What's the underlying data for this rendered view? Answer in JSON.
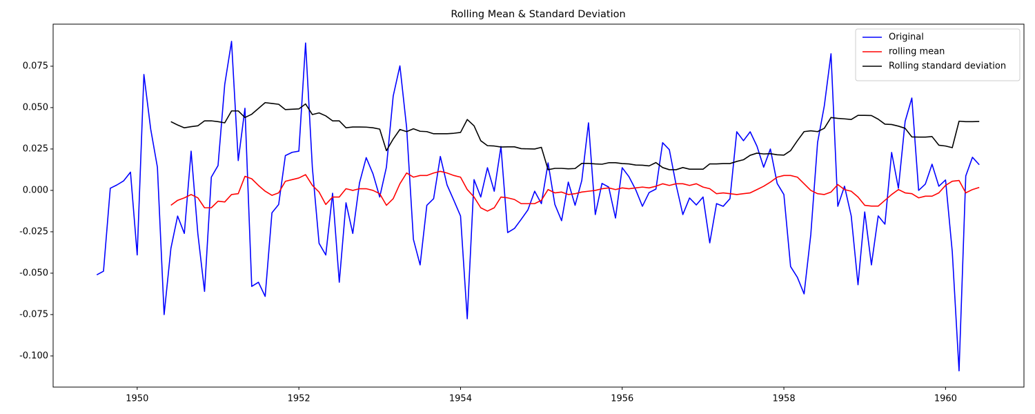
{
  "chart_data": {
    "type": "line",
    "title": "Rolling Mean & Standard Deviation",
    "x": [
      1949.5,
      1949.583,
      1949.667,
      1949.75,
      1949.833,
      1949.917,
      1950,
      1950.083,
      1950.167,
      1950.25,
      1950.333,
      1950.417,
      1950.5,
      1950.583,
      1950.667,
      1950.75,
      1950.833,
      1950.917,
      1951,
      1951.083,
      1951.167,
      1951.25,
      1951.333,
      1951.417,
      1951.5,
      1951.583,
      1951.667,
      1951.75,
      1951.833,
      1951.917,
      1952,
      1952.083,
      1952.167,
      1952.25,
      1952.333,
      1952.417,
      1952.5,
      1952.583,
      1952.667,
      1952.75,
      1952.833,
      1952.917,
      1953,
      1953.083,
      1953.167,
      1953.25,
      1953.333,
      1953.417,
      1953.5,
      1953.583,
      1953.667,
      1953.75,
      1953.833,
      1953.917,
      1954,
      1954.083,
      1954.167,
      1954.25,
      1954.333,
      1954.417,
      1954.5,
      1954.583,
      1954.667,
      1954.75,
      1954.833,
      1954.917,
      1955,
      1955.083,
      1955.167,
      1955.25,
      1955.333,
      1955.417,
      1955.5,
      1955.583,
      1955.667,
      1955.75,
      1955.833,
      1955.917,
      1956,
      1956.083,
      1956.167,
      1956.25,
      1956.333,
      1956.417,
      1956.5,
      1956.583,
      1956.667,
      1956.75,
      1956.833,
      1956.917,
      1957,
      1957.083,
      1957.167,
      1957.25,
      1957.333,
      1957.417,
      1957.5,
      1957.583,
      1957.667,
      1957.75,
      1957.833,
      1957.917,
      1958,
      1958.083,
      1958.167,
      1958.25,
      1958.333,
      1958.417,
      1958.5,
      1958.583,
      1958.667,
      1958.75,
      1958.833,
      1958.917,
      1959,
      1959.083,
      1959.167,
      1959.25,
      1959.333,
      1959.417,
      1959.5,
      1959.583,
      1959.667,
      1959.75,
      1959.833,
      1959.917,
      1960,
      1960.083,
      1960.167,
      1960.25,
      1960.333,
      1960.417
    ],
    "series": [
      {
        "name": "Original",
        "color": "#0000ff",
        "values": [
          -0.051,
          -0.0488,
          0.0013,
          0.0033,
          0.0058,
          0.011,
          -0.039,
          0.07,
          0.037,
          0.014,
          -0.075,
          -0.035,
          -0.0155,
          -0.026,
          0.0237,
          -0.026,
          -0.061,
          0.008,
          0.015,
          0.064,
          0.09,
          0.018,
          0.0496,
          -0.058,
          -0.0555,
          -0.064,
          -0.0135,
          -0.0085,
          0.021,
          0.023,
          0.0237,
          0.089,
          0.0137,
          -0.032,
          -0.039,
          -0.0017,
          -0.0555,
          -0.0075,
          -0.026,
          0.0045,
          0.0198,
          0.01,
          -0.004,
          0.014,
          0.057,
          0.0752,
          0.038,
          -0.0296,
          -0.045,
          -0.009,
          -0.005,
          0.0205,
          0.0033,
          -0.006,
          -0.0155,
          -0.0775,
          0.0065,
          -0.004,
          0.0137,
          -0.0005,
          0.0265,
          -0.0255,
          -0.023,
          -0.0175,
          -0.0118,
          -0.0005,
          -0.008,
          0.0166,
          -0.0085,
          -0.0183,
          0.005,
          -0.009,
          0.006,
          0.0408,
          -0.0146,
          0.0042,
          0.002,
          -0.0167,
          0.0137,
          0.0083,
          0.0004,
          -0.0096,
          -0.0013,
          0.0008,
          0.0288,
          0.0246,
          0.0033,
          -0.0146,
          -0.0046,
          -0.0088,
          -0.004,
          -0.0317,
          -0.008,
          -0.0096,
          -0.005,
          0.0354,
          0.03,
          0.0354,
          0.0267,
          0.014,
          0.025,
          0.0042,
          -0.0025,
          -0.046,
          -0.0525,
          -0.0625,
          -0.0267,
          0.029,
          0.051,
          0.0825,
          -0.0096,
          0.0025,
          -0.0154,
          -0.057,
          -0.013,
          -0.045,
          -0.0154,
          -0.0204,
          0.0229,
          0.0013,
          0.0417,
          0.0558,
          0,
          0.0038,
          0.0158,
          0.0025,
          0.0063,
          -0.037,
          -0.109,
          0.0087,
          0.02,
          0.0155
        ]
      },
      {
        "name": "rolling mean",
        "color": "#ff0000",
        "values": [
          null,
          null,
          null,
          null,
          null,
          null,
          null,
          null,
          null,
          null,
          null,
          -0.009,
          -0.006,
          -0.0045,
          -0.0025,
          -0.0045,
          -0.0105,
          -0.0105,
          -0.0065,
          -0.007,
          -0.0025,
          -0.002,
          0.0085,
          0.007,
          0.003,
          -0.0005,
          -0.003,
          -0.0015,
          0.0055,
          0.0065,
          0.0075,
          0.0095,
          0.003,
          -0.001,
          -0.0085,
          -0.004,
          -0.004,
          0.001,
          0,
          0.001,
          0.001,
          0,
          -0.002,
          -0.009,
          -0.005,
          0.004,
          0.0105,
          0.008,
          0.009,
          0.009,
          0.0105,
          0.0115,
          0.0105,
          0.009,
          0.008,
          0.0005,
          -0.004,
          -0.0105,
          -0.0125,
          -0.0105,
          -0.004,
          -0.0045,
          -0.0055,
          -0.008,
          -0.008,
          -0.008,
          -0.006,
          0.0005,
          -0.0015,
          -0.001,
          -0.0025,
          -0.002,
          -0.001,
          -0.0005,
          0,
          0.001,
          0.0015,
          0.0005,
          0.0015,
          0.001,
          0.0015,
          0.002,
          0.0015,
          0.0025,
          0.004,
          0.003,
          0.004,
          0.004,
          0.003,
          0.004,
          0.002,
          0.001,
          -0.002,
          -0.0015,
          -0.002,
          -0.0025,
          -0.002,
          -0.0015,
          0.0005,
          0.0025,
          0.005,
          0.008,
          0.009,
          0.009,
          0.008,
          0.004,
          0,
          -0.002,
          -0.0025,
          -0.001,
          0.0035,
          0.0005,
          -0.0005,
          -0.004,
          -0.009,
          -0.0095,
          -0.0095,
          -0.006,
          -0.0025,
          0.0005,
          -0.0015,
          -0.002,
          -0.0045,
          -0.0035,
          -0.0035,
          -0.0015,
          0.003,
          0.0055,
          0.006,
          -0.0015,
          0.0005,
          0.0018
        ]
      },
      {
        "name": "Rolling standard deviation",
        "color": "#000000",
        "values": [
          null,
          null,
          null,
          null,
          null,
          null,
          null,
          null,
          null,
          null,
          null,
          0.0415,
          0.0395,
          0.0378,
          0.0385,
          0.039,
          0.042,
          0.042,
          0.0415,
          0.0408,
          0.048,
          0.048,
          0.044,
          0.046,
          0.0495,
          0.053,
          0.0525,
          0.052,
          0.0488,
          0.049,
          0.0492,
          0.0522,
          0.0458,
          0.0468,
          0.045,
          0.042,
          0.042,
          0.0378,
          0.0383,
          0.0383,
          0.0382,
          0.0378,
          0.037,
          0.024,
          0.031,
          0.0368,
          0.0355,
          0.0372,
          0.0357,
          0.0355,
          0.0342,
          0.0342,
          0.0342,
          0.0345,
          0.035,
          0.0428,
          0.039,
          0.03,
          0.027,
          0.0268,
          0.0262,
          0.0263,
          0.0263,
          0.0252,
          0.0251,
          0.025,
          0.026,
          0.0125,
          0.0133,
          0.0133,
          0.013,
          0.0132,
          0.0163,
          0.0163,
          0.016,
          0.0158,
          0.0167,
          0.0167,
          0.0162,
          0.016,
          0.0153,
          0.0152,
          0.0148,
          0.0168,
          0.0138,
          0.0125,
          0.0125,
          0.0138,
          0.0128,
          0.0128,
          0.0128,
          0.016,
          0.016,
          0.0162,
          0.0162,
          0.0175,
          0.0185,
          0.0212,
          0.0225,
          0.022,
          0.0222,
          0.0215,
          0.0213,
          0.024,
          0.03,
          0.0355,
          0.036,
          0.0355,
          0.0375,
          0.044,
          0.0435,
          0.0432,
          0.0428,
          0.0453,
          0.0453,
          0.0452,
          0.043,
          0.04,
          0.0398,
          0.0388,
          0.0375,
          0.0323,
          0.0322,
          0.0322,
          0.0325,
          0.0273,
          0.0268,
          0.0258,
          0.0418,
          0.0415,
          0.0415,
          0.0416
        ]
      }
    ],
    "xlim": [
      1948.96,
      1960.97
    ],
    "xticks": [
      1950,
      1952,
      1954,
      1956,
      1958,
      1960
    ],
    "ylim": [
      -0.1188,
      0.1004
    ],
    "yticks": [
      {
        "value": -0.1,
        "label": "-0.100"
      },
      -0.075,
      {
        "value": -0.05,
        "label": "-0.050"
      },
      -0.025,
      {
        "value": 0,
        "label": "0.000"
      },
      0.025,
      {
        "value": 0.05,
        "label": "0.050"
      },
      0.075
    ],
    "grid": false,
    "legend": "upper right"
  }
}
